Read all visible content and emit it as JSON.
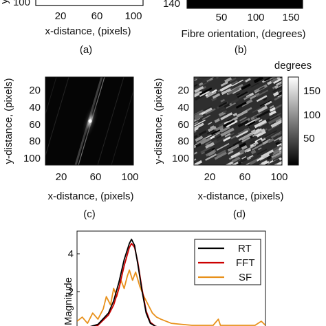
{
  "panels": {
    "a": {
      "caption": "(a)",
      "xlabel": "x-distance, (pixels)",
      "x_ticks": [
        "20",
        "60",
        "100"
      ],
      "y_ticks_visible": [
        "100"
      ],
      "ylabel_fragment": "y"
    },
    "b": {
      "caption": "(b)",
      "xlabel": "Fibre orientation, (degrees)",
      "x_ticks": [
        "50",
        "100",
        "150"
      ],
      "y_ticks_visible": [
        "140"
      ]
    },
    "c": {
      "caption": "(c)",
      "xlabel": "x-distance, (pixels)",
      "ylabel": "y-distance, (pixels)",
      "x_ticks": [
        "20",
        "60",
        "100"
      ],
      "y_ticks": [
        "20",
        "40",
        "60",
        "80",
        "100"
      ]
    },
    "d": {
      "caption": "(d)",
      "xlabel": "x-distance, (pixels)",
      "ylabel": "y-distance, (pixels)",
      "x_ticks": [
        "20",
        "60",
        "100"
      ],
      "y_ticks": [
        "20",
        "40",
        "60",
        "80",
        "100"
      ],
      "colorbar": {
        "label": "degrees",
        "ticks": [
          "150",
          "100",
          "50"
        ],
        "range": [
          0,
          180
        ],
        "colormap": "grayscale"
      }
    },
    "e": {
      "ylabel": "Magnitude",
      "y_ticks": [
        "4",
        "2"
      ]
    }
  },
  "chart_data": {
    "type": "line",
    "ylabel": "Magnitude",
    "xlim": [
      0,
      180
    ],
    "ylim": [
      0,
      4.8
    ],
    "legend_placement": "top-right",
    "series": [
      {
        "name": "RT",
        "color": "#000000",
        "x": [
          0,
          10,
          20,
          30,
          35,
          40,
          45,
          50,
          52,
          55,
          58,
          62,
          66,
          70,
          75,
          80,
          85,
          90,
          100,
          110,
          120,
          130,
          140,
          150,
          160,
          170,
          176,
          180
        ],
        "y": [
          0.05,
          0.1,
          0.25,
          0.8,
          1.4,
          2.3,
          3.4,
          4.2,
          4.4,
          4.1,
          3.2,
          1.9,
          0.8,
          0.3,
          0.15,
          0.1,
          0.08,
          0.08,
          0.08,
          0.08,
          0.08,
          0.08,
          0.08,
          0.08,
          0.08,
          0.08,
          0.08,
          0.05
        ]
      },
      {
        "name": "FFT",
        "color": "#cc0000",
        "x": [
          0,
          10,
          20,
          30,
          35,
          40,
          45,
          50,
          52,
          55,
          58,
          62,
          66,
          70,
          75,
          80,
          85,
          90,
          100,
          110,
          120,
          130,
          140,
          150,
          160,
          170,
          176,
          180
        ],
        "y": [
          0.05,
          0.1,
          0.2,
          0.7,
          1.2,
          2.0,
          3.1,
          4.0,
          4.2,
          4.0,
          3.3,
          2.0,
          0.9,
          0.35,
          0.15,
          0.1,
          0.08,
          0.08,
          0.08,
          0.08,
          0.08,
          0.08,
          0.08,
          0.08,
          0.08,
          0.08,
          0.08,
          0.05
        ]
      },
      {
        "name": "SF",
        "color": "#e8901a",
        "x": [
          0,
          5,
          10,
          15,
          20,
          25,
          28,
          32,
          35,
          38,
          42,
          45,
          48,
          50,
          53,
          56,
          60,
          64,
          68,
          72,
          76,
          80,
          85,
          90,
          100,
          110,
          120,
          130,
          135,
          137,
          140,
          150,
          160,
          170,
          176,
          180
        ],
        "y": [
          0.4,
          0.6,
          0.3,
          0.8,
          0.5,
          1.0,
          1.6,
          1.2,
          2.0,
          1.6,
          2.4,
          2.0,
          2.6,
          2.9,
          2.4,
          2.8,
          2.1,
          1.6,
          1.2,
          0.8,
          0.6,
          0.5,
          0.4,
          0.3,
          0.25,
          0.2,
          0.2,
          0.2,
          0.5,
          0.2,
          0.2,
          0.2,
          0.2,
          0.2,
          0.4,
          0.2
        ]
      }
    ]
  }
}
